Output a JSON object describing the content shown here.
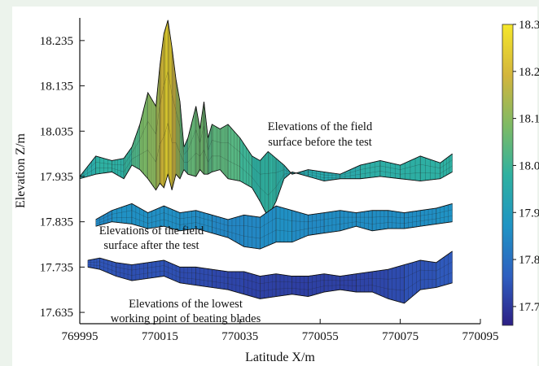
{
  "chart_data": {
    "type": "surface",
    "xlabel": "Latitude X/m",
    "ylabel": "Elevation Z/m",
    "xlim": [
      769995,
      770095
    ],
    "ylim": [
      17.61,
      18.285
    ],
    "x_ticks": [
      769995,
      770015,
      770035,
      770055,
      770075,
      770095
    ],
    "x_tick_labels": [
      "769995",
      "770015",
      "770035",
      "770055",
      "770075",
      "770095"
    ],
    "y_ticks": [
      17.635,
      17.735,
      17.835,
      17.935,
      18.035,
      18.135,
      18.235
    ],
    "y_tick_labels": [
      "17.635",
      "17.735",
      "17.835",
      "17.935",
      "18.035",
      "18.135",
      "18.235"
    ],
    "colorbar": {
      "range": [
        17.66,
        18.3
      ],
      "tick_values": [
        17.7,
        17.8,
        17.9,
        18.0,
        18.1,
        18.2,
        18.3
      ],
      "tick_labels": [
        "17.7",
        "17.8",
        "17.9",
        "18.0",
        "18.1",
        "18.2",
        "18.3"
      ],
      "colors": [
        "#2c1f84",
        "#2f5ec0",
        "#1f94c4",
        "#2fb1a0",
        "#7cba66",
        "#d3b53d",
        "#f5e72a"
      ]
    },
    "series": [
      {
        "annotation": [
          "Elevations of the field",
          "surface before the test"
        ],
        "x": [
          769995,
          769999,
          770003,
          770006,
          770008,
          770010,
          770012,
          770014,
          770015,
          770016,
          770017,
          770018,
          770019,
          770020,
          770021,
          770022,
          770024,
          770025,
          770026,
          770027,
          770028,
          770030,
          770032,
          770035,
          770038,
          770040,
          770042,
          770044,
          770046,
          770048,
          770052,
          770056,
          770060,
          770065,
          770070,
          770075,
          770080,
          770085,
          770088
        ],
        "top": [
          17.935,
          17.98,
          17.97,
          17.975,
          18.0,
          18.05,
          18.12,
          18.09,
          18.18,
          18.25,
          18.28,
          18.22,
          18.15,
          18.1,
          18.0,
          18.02,
          18.09,
          18.04,
          18.1,
          18.02,
          18.05,
          18.04,
          18.05,
          18.02,
          17.98,
          17.97,
          17.99,
          17.975,
          17.96,
          17.94,
          17.95,
          17.945,
          17.94,
          17.96,
          17.97,
          17.96,
          17.98,
          17.965,
          17.985
        ],
        "bottom": [
          17.93,
          17.94,
          17.945,
          17.93,
          17.96,
          17.95,
          17.93,
          17.905,
          17.92,
          17.91,
          17.94,
          17.905,
          17.94,
          17.93,
          17.95,
          17.94,
          17.935,
          17.95,
          17.94,
          17.94,
          17.945,
          17.95,
          17.93,
          17.925,
          17.91,
          17.88,
          17.845,
          17.88,
          17.93,
          17.945,
          17.935,
          17.925,
          17.93,
          17.93,
          17.935,
          17.93,
          17.925,
          17.93,
          17.945
        ]
      },
      {
        "annotation": [
          "Elevations of the field",
          "surface after the test"
        ],
        "x": [
          769999,
          770003,
          770008,
          770012,
          770016,
          770020,
          770024,
          770028,
          770032,
          770036,
          770040,
          770044,
          770048,
          770052,
          770056,
          770060,
          770064,
          770068,
          770072,
          770076,
          770080,
          770084,
          770088
        ],
        "top": [
          17.84,
          17.86,
          17.875,
          17.855,
          17.87,
          17.855,
          17.86,
          17.85,
          17.84,
          17.85,
          17.845,
          17.87,
          17.86,
          17.85,
          17.855,
          17.86,
          17.855,
          17.86,
          17.86,
          17.855,
          17.86,
          17.865,
          17.875
        ],
        "bottom": [
          17.825,
          17.835,
          17.83,
          17.82,
          17.825,
          17.815,
          17.82,
          17.81,
          17.8,
          17.78,
          17.775,
          17.79,
          17.79,
          17.805,
          17.81,
          17.815,
          17.825,
          17.815,
          17.82,
          17.82,
          17.825,
          17.83,
          17.835
        ]
      },
      {
        "annotation": [
          "Elevations of the lowest",
          "working point of beating blades"
        ],
        "x": [
          769997,
          770000,
          770004,
          770008,
          770012,
          770016,
          770020,
          770024,
          770028,
          770032,
          770036,
          770040,
          770044,
          770048,
          770052,
          770056,
          770060,
          770064,
          770068,
          770072,
          770076,
          770080,
          770084,
          770088
        ],
        "top": [
          17.75,
          17.755,
          17.745,
          17.74,
          17.745,
          17.75,
          17.735,
          17.735,
          17.73,
          17.725,
          17.725,
          17.715,
          17.72,
          17.715,
          17.715,
          17.72,
          17.715,
          17.72,
          17.725,
          17.73,
          17.74,
          17.75,
          17.745,
          17.77
        ],
        "bottom": [
          17.735,
          17.73,
          17.715,
          17.705,
          17.71,
          17.715,
          17.7,
          17.695,
          17.69,
          17.685,
          17.675,
          17.665,
          17.67,
          17.675,
          17.67,
          17.68,
          17.685,
          17.68,
          17.68,
          17.665,
          17.655,
          17.685,
          17.69,
          17.7
        ]
      }
    ]
  }
}
